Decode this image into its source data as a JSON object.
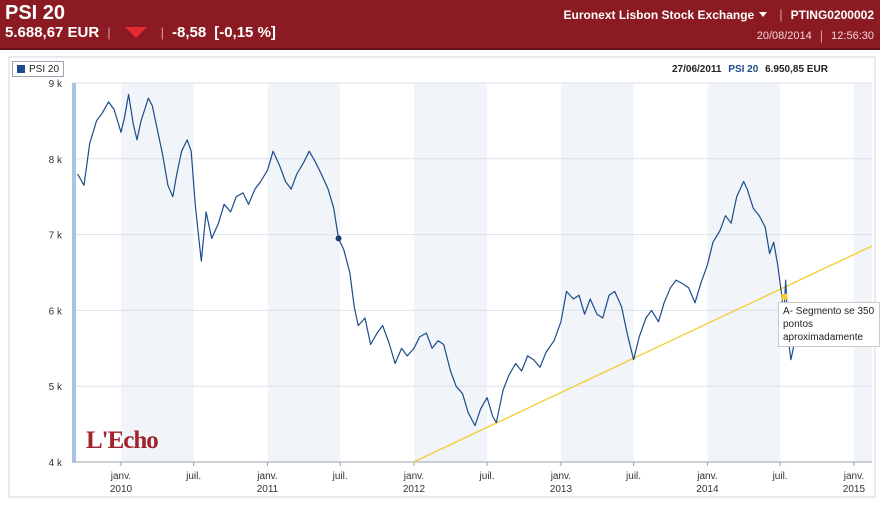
{
  "header": {
    "index_name": "PSI 20",
    "price": "5.688,67 EUR",
    "change": "-8,58",
    "change_pct": "[-0,15 %]",
    "exchange": "Euronext Lisbon Stock Exchange",
    "isin": "PTING0200002",
    "date": "20/08/2014",
    "time": "12:56:30",
    "colors": {
      "bar": "#8b1a22",
      "down": "#e52a32"
    }
  },
  "chart_info": {
    "date": "27/06/2011",
    "series_name": "PSI 20",
    "value": "6.950,85 EUR"
  },
  "annotation": {
    "text": "A- Segmento se 350 pontos aproximadamente"
  },
  "logo": {
    "text": "L'Echo"
  },
  "chart_data": {
    "type": "line",
    "series": [
      {
        "name": "PSI 20",
        "color": "#1b4c8c",
        "points": [
          [
            "2009-09-15",
            7800
          ],
          [
            "2009-10-01",
            7650
          ],
          [
            "2009-10-15",
            8200
          ],
          [
            "2009-11-01",
            8500
          ],
          [
            "2009-11-15",
            8600
          ],
          [
            "2009-12-01",
            8750
          ],
          [
            "2009-12-15",
            8650
          ],
          [
            "2010-01-01",
            8350
          ],
          [
            "2010-01-10",
            8550
          ],
          [
            "2010-01-20",
            8850
          ],
          [
            "2010-02-01",
            8450
          ],
          [
            "2010-02-10",
            8250
          ],
          [
            "2010-02-20",
            8500
          ],
          [
            "2010-03-01",
            8650
          ],
          [
            "2010-03-10",
            8800
          ],
          [
            "2010-03-20",
            8700
          ],
          [
            "2010-04-01",
            8400
          ],
          [
            "2010-04-15",
            8050
          ],
          [
            "2010-04-28",
            7650
          ],
          [
            "2010-05-10",
            7500
          ],
          [
            "2010-05-20",
            7800
          ],
          [
            "2010-06-01",
            8100
          ],
          [
            "2010-06-15",
            8250
          ],
          [
            "2010-06-25",
            8100
          ],
          [
            "2010-07-05",
            7400
          ],
          [
            "2010-07-12",
            7050
          ],
          [
            "2010-07-20",
            6650
          ],
          [
            "2010-08-01",
            7300
          ],
          [
            "2010-08-15",
            6950
          ],
          [
            "2010-09-01",
            7150
          ],
          [
            "2010-09-15",
            7400
          ],
          [
            "2010-10-01",
            7300
          ],
          [
            "2010-10-15",
            7500
          ],
          [
            "2010-11-01",
            7550
          ],
          [
            "2010-11-15",
            7400
          ],
          [
            "2010-12-01",
            7600
          ],
          [
            "2010-12-15",
            7700
          ],
          [
            "2011-01-01",
            7850
          ],
          [
            "2011-01-15",
            8100
          ],
          [
            "2011-02-01",
            7900
          ],
          [
            "2011-02-15",
            7700
          ],
          [
            "2011-03-01",
            7600
          ],
          [
            "2011-03-15",
            7800
          ],
          [
            "2011-04-01",
            7950
          ],
          [
            "2011-04-15",
            8100
          ],
          [
            "2011-05-01",
            7950
          ],
          [
            "2011-05-15",
            7800
          ],
          [
            "2011-06-01",
            7600
          ],
          [
            "2011-06-15",
            7350
          ],
          [
            "2011-06-27",
            6950
          ],
          [
            "2011-07-10",
            6800
          ],
          [
            "2011-07-25",
            6500
          ],
          [
            "2011-08-05",
            6050
          ],
          [
            "2011-08-15",
            5800
          ],
          [
            "2011-09-01",
            5900
          ],
          [
            "2011-09-15",
            5550
          ],
          [
            "2011-10-01",
            5700
          ],
          [
            "2011-10-15",
            5800
          ],
          [
            "2011-11-01",
            5550
          ],
          [
            "2011-11-15",
            5300
          ],
          [
            "2011-12-01",
            5500
          ],
          [
            "2011-12-15",
            5400
          ],
          [
            "2012-01-01",
            5500
          ],
          [
            "2012-01-15",
            5650
          ],
          [
            "2012-02-01",
            5700
          ],
          [
            "2012-02-15",
            5500
          ],
          [
            "2012-03-01",
            5600
          ],
          [
            "2012-03-15",
            5550
          ],
          [
            "2012-04-01",
            5200
          ],
          [
            "2012-04-15",
            5000
          ],
          [
            "2012-05-01",
            4900
          ],
          [
            "2012-05-15",
            4650
          ],
          [
            "2012-06-01",
            4480
          ],
          [
            "2012-06-15",
            4700
          ],
          [
            "2012-07-01",
            4850
          ],
          [
            "2012-07-15",
            4600
          ],
          [
            "2012-07-24",
            4520
          ],
          [
            "2012-08-10",
            4950
          ],
          [
            "2012-08-25",
            5150
          ],
          [
            "2012-09-10",
            5300
          ],
          [
            "2012-09-25",
            5200
          ],
          [
            "2012-10-10",
            5400
          ],
          [
            "2012-10-25",
            5350
          ],
          [
            "2012-11-10",
            5250
          ],
          [
            "2012-11-25",
            5450
          ],
          [
            "2012-12-15",
            5600
          ],
          [
            "2013-01-01",
            5850
          ],
          [
            "2013-01-15",
            6250
          ],
          [
            "2013-02-01",
            6150
          ],
          [
            "2013-02-15",
            6200
          ],
          [
            "2013-03-01",
            5950
          ],
          [
            "2013-03-15",
            6150
          ],
          [
            "2013-04-01",
            5950
          ],
          [
            "2013-04-15",
            5900
          ],
          [
            "2013-05-01",
            6200
          ],
          [
            "2013-05-15",
            6250
          ],
          [
            "2013-06-01",
            6050
          ],
          [
            "2013-06-15",
            5700
          ],
          [
            "2013-07-01",
            5350
          ],
          [
            "2013-07-15",
            5650
          ],
          [
            "2013-08-01",
            5900
          ],
          [
            "2013-08-15",
            6000
          ],
          [
            "2013-09-01",
            5850
          ],
          [
            "2013-09-15",
            6100
          ],
          [
            "2013-10-01",
            6300
          ],
          [
            "2013-10-15",
            6400
          ],
          [
            "2013-11-01",
            6350
          ],
          [
            "2013-11-15",
            6300
          ],
          [
            "2013-12-01",
            6100
          ],
          [
            "2013-12-15",
            6350
          ],
          [
            "2014-01-01",
            6600
          ],
          [
            "2014-01-15",
            6900
          ],
          [
            "2014-02-01",
            7050
          ],
          [
            "2014-02-15",
            7250
          ],
          [
            "2014-03-01",
            7150
          ],
          [
            "2014-03-15",
            7500
          ],
          [
            "2014-04-01",
            7700
          ],
          [
            "2014-04-10",
            7600
          ],
          [
            "2014-04-25",
            7350
          ],
          [
            "2014-05-10",
            7250
          ],
          [
            "2014-05-25",
            7100
          ],
          [
            "2014-06-05",
            6750
          ],
          [
            "2014-06-15",
            6900
          ],
          [
            "2014-06-25",
            6600
          ],
          [
            "2014-07-05",
            6200
          ],
          [
            "2014-07-10",
            5900
          ],
          [
            "2014-07-15",
            6400
          ],
          [
            "2014-07-22",
            5600
          ],
          [
            "2014-07-28",
            5350
          ],
          [
            "2014-08-05",
            5550
          ],
          [
            "2014-08-12",
            5700
          ],
          [
            "2014-08-20",
            5688
          ]
        ]
      }
    ],
    "y_axis": {
      "min": 4000,
      "max": 9000,
      "ticks": [
        4000,
        5000,
        6000,
        7000,
        8000,
        9000
      ],
      "tick_labels": [
        "4 k",
        "5 k",
        "6 k",
        "7 k",
        "8 k",
        "9 k"
      ]
    },
    "x_axis": {
      "start": "2009-09-01",
      "end": "2015-02-15",
      "ticks": [
        {
          "date": "2010-01-01",
          "line1": "janv.",
          "line2": "2010"
        },
        {
          "date": "2010-07-01",
          "line1": "juil.",
          "line2": ""
        },
        {
          "date": "2011-01-01",
          "line1": "janv.",
          "line2": "2011"
        },
        {
          "date": "2011-07-01",
          "line1": "juil.",
          "line2": ""
        },
        {
          "date": "2012-01-01",
          "line1": "janv.",
          "line2": "2012"
        },
        {
          "date": "2012-07-01",
          "line1": "juil.",
          "line2": ""
        },
        {
          "date": "2013-01-01",
          "line1": "janv.",
          "line2": "2013"
        },
        {
          "date": "2013-07-01",
          "line1": "juil.",
          "line2": ""
        },
        {
          "date": "2014-01-01",
          "line1": "janv.",
          "line2": "2014"
        },
        {
          "date": "2014-07-01",
          "line1": "juil.",
          "line2": ""
        },
        {
          "date": "2015-01-01",
          "line1": "janv.",
          "line2": "2015"
        }
      ]
    },
    "trendline": {
      "color": "#f4cf3c",
      "from": [
        "2011-12-31",
        4000
      ],
      "to": [
        "2015-02-15",
        6850
      ]
    },
    "markers": [
      {
        "date": "2011-06-27",
        "value": 6950,
        "color": "#1b3f73"
      },
      {
        "date": "2014-07-12",
        "value": 6180,
        "color": "#f4cf3c"
      },
      {
        "date": "2014-07-12",
        "value": 5730,
        "color": "#f4cf3c"
      }
    ],
    "grid": true,
    "legend_position": "top-left"
  }
}
